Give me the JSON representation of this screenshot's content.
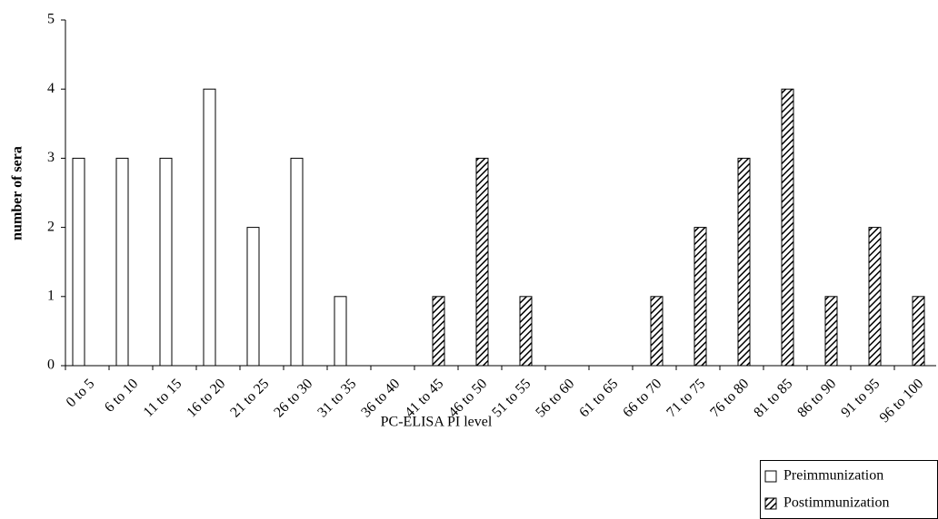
{
  "chart_data": {
    "type": "bar",
    "xlabel": "PC-ELISA PI level",
    "ylabel": "number of sera",
    "categories": [
      "0 to 5",
      "6 to 10",
      "11 to 15",
      "16 to 20",
      "21 to 25",
      "26 to 30",
      "31 to 35",
      "36 to 40",
      "41 to 45",
      "46 to 50",
      "51 to 55",
      "56 to 60",
      "61 to 65",
      "66 to 70",
      "71 to 75",
      "76 to 80",
      "81 to 85",
      "86 to 90",
      "91 to 95",
      "96 to 100"
    ],
    "series": [
      {
        "name": "Preimmunization",
        "color": "#ffffff",
        "hatch": false,
        "values": [
          3,
          3,
          3,
          4,
          2,
          3,
          1,
          0,
          0,
          0,
          0,
          0,
          0,
          0,
          0,
          0,
          0,
          0,
          0,
          0
        ]
      },
      {
        "name": "Postimmunization",
        "color": "#000000",
        "hatch": true,
        "values": [
          0,
          0,
          0,
          0,
          0,
          0,
          0,
          0,
          1,
          3,
          1,
          0,
          0,
          1,
          2,
          3,
          4,
          1,
          2,
          1
        ]
      }
    ],
    "ylim": [
      0,
      5
    ],
    "yticks": [
      0,
      1,
      2,
      3,
      4,
      5
    ],
    "grid": false,
    "legend": "lower right"
  }
}
